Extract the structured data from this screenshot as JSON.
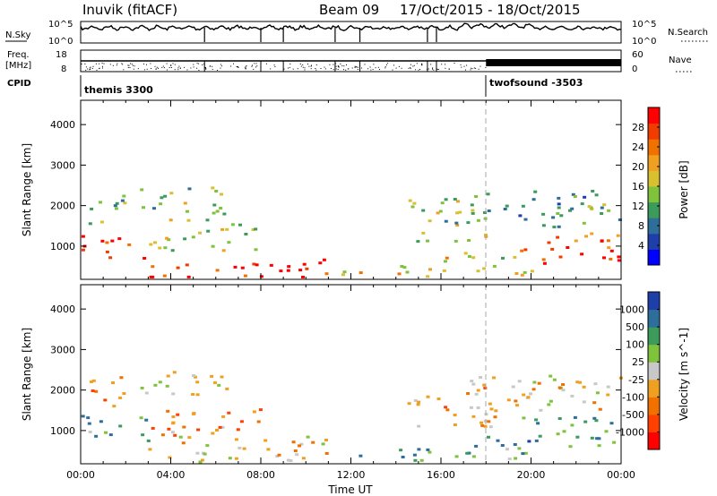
{
  "header": {
    "title": "Inuvik (fitACF)",
    "beam": "Beam 09",
    "dates": "17/Oct/2015 - 18/Oct/2015"
  },
  "status_panels": {
    "nsky_label": "N.Sky",
    "nsearch_label": "N.Search",
    "freq_label_1": "Freq.",
    "freq_label_2": "[MHz]",
    "nave_label": "Nave",
    "cpid_label": "CPID",
    "noise_ticks": [
      "10^5",
      "10^0"
    ],
    "noise_right_ticks": [
      "10^5",
      "10^0"
    ],
    "freq_ticks": [
      "18",
      "8"
    ],
    "nave_ticks": [
      "60",
      "0"
    ],
    "cpid_segments": [
      {
        "name": "themis 3300",
        "start_hour": 0,
        "end_hour": 18
      },
      {
        "name": "twofsound -3503",
        "start_hour": 18,
        "end_hour": 24
      }
    ]
  },
  "chart_data": [
    {
      "type": "heatmap",
      "quantity": "Power",
      "ylabel": "Slant Range [km]",
      "xlabel": "",
      "xlim_hours": [
        0,
        24
      ],
      "ylim": [
        180,
        4600
      ],
      "yticks": [
        1000,
        2000,
        3000,
        4000
      ],
      "colorbar": {
        "label": "Power [dB]",
        "ticks": [
          "28",
          "24",
          "20",
          "16",
          "12",
          "8",
          "4"
        ],
        "colors": [
          "#0000ff",
          "#1e3fa8",
          "#2e6e9a",
          "#3c9a5a",
          "#7fc23b",
          "#d8c030",
          "#f0a020",
          "#f07000",
          "#f03c00",
          "#ff0000"
        ]
      },
      "echo_regions": [
        {
          "x": [
            0.0,
            3.0
          ],
          "y": [
            700,
            1300
          ],
          "level": 0.9
        },
        {
          "x": [
            3.0,
            8.0
          ],
          "y": [
            900,
            1700
          ],
          "level": 0.5
        },
        {
          "x": [
            3.0,
            11.0
          ],
          "y": [
            250,
            750
          ],
          "level": 0.95
        },
        {
          "x": [
            2.5,
            6.5
          ],
          "y": [
            1800,
            2500
          ],
          "level": 0.45
        },
        {
          "x": [
            0.2,
            2.0
          ],
          "y": [
            1500,
            2400
          ],
          "level": 0.4
        },
        {
          "x": [
            11.5,
            15.5
          ],
          "y": [
            250,
            600
          ],
          "level": 0.6
        },
        {
          "x": [
            14.5,
            18.5
          ],
          "y": [
            1100,
            2200
          ],
          "level": 0.45
        },
        {
          "x": [
            17.0,
            24.0
          ],
          "y": [
            1500,
            2400
          ],
          "level": 0.35
        },
        {
          "x": [
            19.5,
            24.0
          ],
          "y": [
            600,
            1400
          ],
          "level": 0.8
        },
        {
          "x": [
            16.0,
            20.0
          ],
          "y": [
            300,
            900
          ],
          "level": 0.55
        }
      ]
    },
    {
      "type": "heatmap",
      "quantity": "Velocity",
      "ylabel": "Slant Range [km]",
      "xlabel": "Time UT",
      "xlim_hours": [
        0,
        24
      ],
      "ylim": [
        180,
        4600
      ],
      "yticks": [
        1000,
        2000,
        3000,
        4000
      ],
      "xticks": [
        "00:00",
        "04:00",
        "08:00",
        "12:00",
        "16:00",
        "20:00",
        "00:00"
      ],
      "colorbar": {
        "label": "Velocity [m s^-1]",
        "ticks": [
          "1000",
          "500",
          "100",
          "25",
          "-25",
          "-100",
          "-500",
          "-1000"
        ],
        "colors": [
          "#ff0000",
          "#ff4000",
          "#f07000",
          "#f0a020",
          "#c8c8c8",
          "#7fc23b",
          "#3c9a5a",
          "#2e6e9a",
          "#1e3fa8"
        ]
      },
      "echo_regions": [
        {
          "x": [
            0.0,
            3.0
          ],
          "y": [
            700,
            1400
          ],
          "level": 0.7
        },
        {
          "x": [
            3.0,
            8.0
          ],
          "y": [
            900,
            1700
          ],
          "level": 0.3
        },
        {
          "x": [
            3.0,
            11.0
          ],
          "y": [
            250,
            900
          ],
          "level": 0.45
        },
        {
          "x": [
            2.5,
            6.5
          ],
          "y": [
            1800,
            2500
          ],
          "level": 0.45
        },
        {
          "x": [
            0.2,
            2.0
          ],
          "y": [
            1500,
            2400
          ],
          "level": 0.3
        },
        {
          "x": [
            11.5,
            15.5
          ],
          "y": [
            250,
            600
          ],
          "level": 0.75
        },
        {
          "x": [
            14.5,
            18.5
          ],
          "y": [
            1100,
            2200
          ],
          "level": 0.35
        },
        {
          "x": [
            17.0,
            24.0
          ],
          "y": [
            1500,
            2400
          ],
          "level": 0.45
        },
        {
          "x": [
            19.5,
            24.0
          ],
          "y": [
            600,
            1400
          ],
          "level": 0.75
        },
        {
          "x": [
            16.0,
            20.0
          ],
          "y": [
            300,
            900
          ],
          "level": 0.7
        }
      ]
    }
  ]
}
